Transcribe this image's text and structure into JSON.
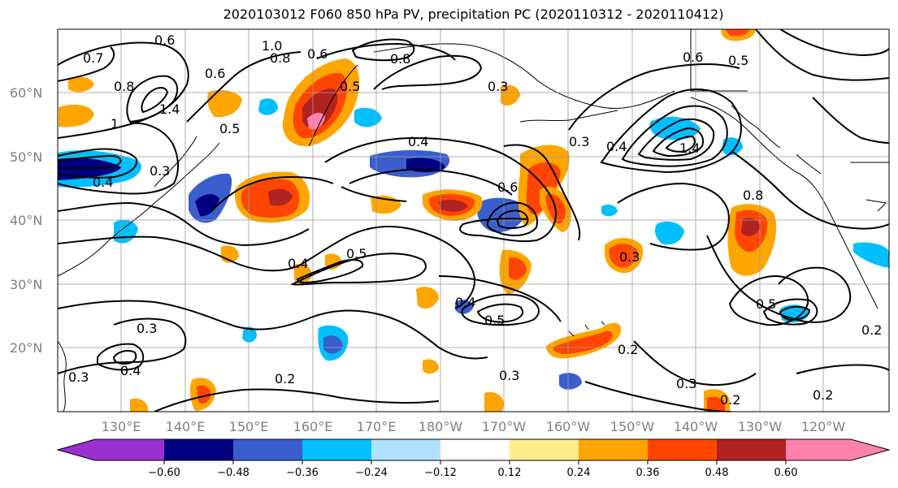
{
  "title": "2020103012 F060 850 hPa PV, precipitation PC (2020110312 - 2020110412)",
  "lat_labels": [
    "60°N",
    "50°N",
    "40°N",
    "30°N",
    "20°N"
  ],
  "lon_labels": [
    "130°E",
    "140°E",
    "150°E",
    "160°E",
    "170°E",
    "180°W",
    "170°W",
    "160°W",
    "150°W",
    "140°W",
    "130°W",
    "120°W"
  ],
  "colorbar": {
    "ticks": [
      "−0.60",
      "−0.48",
      "−0.36",
      "−0.24",
      "−0.12",
      "0.12",
      "0.24",
      "0.36",
      "0.48",
      "0.60"
    ],
    "colors": [
      "#9b30d0",
      "#000080",
      "#3a5fcd",
      "#00bfff",
      "#b0e2ff",
      "#ffffff",
      "#ffec8b",
      "#ffa500",
      "#ff4500",
      "#b22222",
      "#ff82ab",
      "#ff82ab"
    ]
  },
  "contour_labels": [
    "0.6",
    "0.7",
    "1.0",
    "0.8",
    "0.6",
    "0.8",
    "0.3",
    "0.6",
    "0.5",
    "0.8",
    "1.4",
    "0.5",
    "1",
    "0.4",
    "0.4",
    "0.3",
    "0.6",
    "0.3",
    "0.4",
    "1.4",
    "0.8",
    "0.6",
    "0.5",
    "0.4",
    "0.5",
    "0.4",
    "0.5",
    "0.3",
    "0.3",
    "0.2",
    "0.3",
    "0.4",
    "0.2",
    "0.3",
    "0.3",
    "0.2",
    "0.5",
    "0.2",
    "0.2"
  ]
}
